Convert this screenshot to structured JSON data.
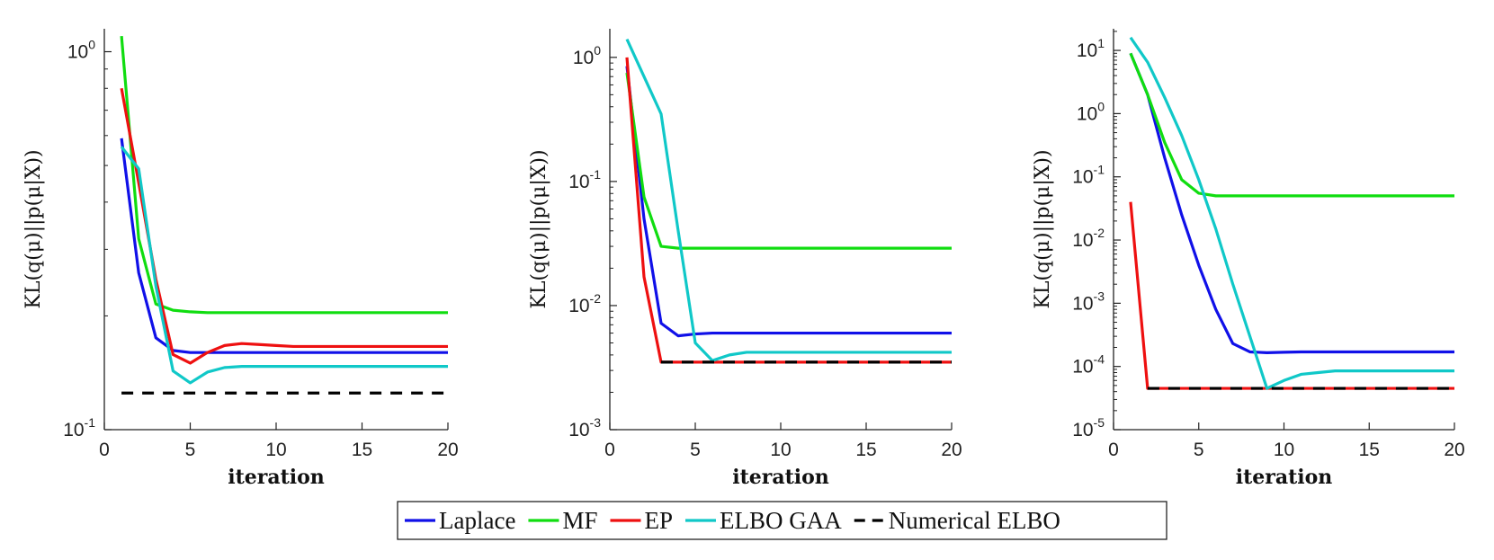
{
  "chart_data": [
    {
      "type": "line",
      "xlabel": "iteration",
      "ylabel": "KL(q(μ)||p(μ|X))",
      "yscale": "log",
      "xlim": [
        0,
        20
      ],
      "ylim": [
        0.1,
        1.15
      ],
      "xticks": [
        0,
        5,
        10,
        15,
        20
      ],
      "yticks": [
        {
          "value": 1,
          "base": "10",
          "exp": "0"
        },
        {
          "value": 0.1,
          "base": "10",
          "exp": "-1"
        }
      ],
      "x": [
        1,
        2,
        3,
        4,
        5,
        6,
        7,
        8,
        9,
        10,
        11,
        12,
        13,
        14,
        15,
        16,
        17,
        18,
        19,
        20
      ],
      "series": [
        {
          "name": "Laplace",
          "color": "#1010e8",
          "values": [
            0.59,
            0.26,
            0.175,
            0.162,
            0.16,
            0.16,
            0.16,
            0.16,
            0.16,
            0.16,
            0.16,
            0.16,
            0.16,
            0.16,
            0.16,
            0.16,
            0.16,
            0.16,
            0.16,
            0.16
          ]
        },
        {
          "name": "MF",
          "color": "#10dd10",
          "values": [
            1.1,
            0.32,
            0.215,
            0.207,
            0.205,
            0.204,
            0.204,
            0.204,
            0.204,
            0.204,
            0.204,
            0.204,
            0.204,
            0.204,
            0.204,
            0.204,
            0.204,
            0.204,
            0.204,
            0.204
          ]
        },
        {
          "name": "EP",
          "color": "#ee1010",
          "values": [
            0.8,
            0.45,
            0.25,
            0.158,
            0.15,
            0.16,
            0.167,
            0.169,
            0.168,
            0.167,
            0.166,
            0.166,
            0.166,
            0.166,
            0.166,
            0.166,
            0.166,
            0.166,
            0.166,
            0.166
          ]
        },
        {
          "name": "ELBO GAA",
          "color": "#10c8c8",
          "values": [
            0.56,
            0.49,
            0.24,
            0.143,
            0.133,
            0.142,
            0.146,
            0.147,
            0.147,
            0.147,
            0.147,
            0.147,
            0.147,
            0.147,
            0.147,
            0.147,
            0.147,
            0.147,
            0.147,
            0.147
          ]
        },
        {
          "name": "Numerical ELBO",
          "color": "#000000",
          "dashed": true,
          "values": [
            0.125,
            0.125,
            0.125,
            0.125,
            0.125,
            0.125,
            0.125,
            0.125,
            0.125,
            0.125,
            0.125,
            0.125,
            0.125,
            0.125,
            0.125,
            0.125,
            0.125,
            0.125,
            0.125,
            0.125
          ]
        }
      ]
    },
    {
      "type": "line",
      "xlabel": "iteration",
      "ylabel": "KL(q(μ)||p(μ|X))",
      "yscale": "log",
      "xlim": [
        0,
        20
      ],
      "ylim": [
        0.001,
        1.7
      ],
      "xticks": [
        0,
        5,
        10,
        15,
        20
      ],
      "yticks": [
        {
          "value": 1,
          "base": "10",
          "exp": "0"
        },
        {
          "value": 0.1,
          "base": "10",
          "exp": "-1"
        },
        {
          "value": 0.01,
          "base": "10",
          "exp": "-2"
        },
        {
          "value": 0.001,
          "base": "10",
          "exp": "-3"
        }
      ],
      "x": [
        1,
        2,
        3,
        4,
        5,
        6,
        7,
        8,
        9,
        10,
        11,
        12,
        13,
        14,
        15,
        16,
        17,
        18,
        19,
        20
      ],
      "series": [
        {
          "name": "Laplace",
          "color": "#1010e8",
          "values": [
            0.85,
            0.05,
            0.0072,
            0.0057,
            0.0059,
            0.006,
            0.006,
            0.006,
            0.006,
            0.006,
            0.006,
            0.006,
            0.006,
            0.006,
            0.006,
            0.006,
            0.006,
            0.006,
            0.006,
            0.006
          ]
        },
        {
          "name": "MF",
          "color": "#10dd10",
          "values": [
            0.75,
            0.075,
            0.03,
            0.029,
            0.029,
            0.029,
            0.029,
            0.029,
            0.029,
            0.029,
            0.029,
            0.029,
            0.029,
            0.029,
            0.029,
            0.029,
            0.029,
            0.029,
            0.029,
            0.029
          ]
        },
        {
          "name": "EP",
          "color": "#ee1010",
          "values": [
            1.0,
            0.017,
            0.0035,
            0.0035,
            0.0035,
            0.0035,
            0.0035,
            0.0035,
            0.0035,
            0.0035,
            0.0035,
            0.0035,
            0.0035,
            0.0035,
            0.0035,
            0.0035,
            0.0035,
            0.0035,
            0.0035,
            0.0035
          ]
        },
        {
          "name": "ELBO GAA",
          "color": "#10c8c8",
          "values": [
            1.4,
            0.7,
            0.35,
            0.04,
            0.005,
            0.0036,
            0.004,
            0.0042,
            0.0042,
            0.0042,
            0.0042,
            0.0042,
            0.0042,
            0.0042,
            0.0042,
            0.0042,
            0.0042,
            0.0042,
            0.0042,
            0.0042
          ]
        },
        {
          "name": "Numerical ELBO",
          "color": "#000000",
          "dashed": true,
          "values": [
            null,
            null,
            0.0035,
            0.0035,
            0.0035,
            0.0035,
            0.0035,
            0.0035,
            0.0035,
            0.0035,
            0.0035,
            0.0035,
            0.0035,
            0.0035,
            0.0035,
            0.0035,
            0.0035,
            0.0035,
            0.0035,
            0.0035
          ]
        }
      ]
    },
    {
      "type": "line",
      "xlabel": "iteration",
      "ylabel": "KL(q(μ)||p(μ|X))",
      "yscale": "log",
      "xlim": [
        0,
        20
      ],
      "ylim": [
        1e-05,
        22
      ],
      "xticks": [
        0,
        5,
        10,
        15,
        20
      ],
      "yticks": [
        {
          "value": 10,
          "base": "10",
          "exp": "1"
        },
        {
          "value": 1,
          "base": "10",
          "exp": "0"
        },
        {
          "value": 0.1,
          "base": "10",
          "exp": "-1"
        },
        {
          "value": 0.01,
          "base": "10",
          "exp": "-2"
        },
        {
          "value": 0.001,
          "base": "10",
          "exp": "-3"
        },
        {
          "value": 0.0001,
          "base": "10",
          "exp": "-4"
        },
        {
          "value": 1e-05,
          "base": "10",
          "exp": "-5"
        }
      ],
      "x": [
        1,
        2,
        3,
        4,
        5,
        6,
        7,
        8,
        9,
        10,
        11,
        12,
        13,
        14,
        15,
        16,
        17,
        18,
        19,
        20
      ],
      "series": [
        {
          "name": "Laplace",
          "color": "#1010e8",
          "values": [
            9,
            2.0,
            0.2,
            0.025,
            0.004,
            0.0008,
            0.00023,
            0.00017,
            0.000165,
            0.000168,
            0.00017,
            0.00017,
            0.00017,
            0.00017,
            0.00017,
            0.00017,
            0.00017,
            0.00017,
            0.00017,
            0.00017
          ]
        },
        {
          "name": "MF",
          "color": "#10dd10",
          "values": [
            9,
            2.0,
            0.35,
            0.09,
            0.055,
            0.05,
            0.05,
            0.05,
            0.05,
            0.05,
            0.05,
            0.05,
            0.05,
            0.05,
            0.05,
            0.05,
            0.05,
            0.05,
            0.05,
            0.05
          ]
        },
        {
          "name": "EP",
          "color": "#ee1010",
          "values": [
            0.04,
            4.5e-05,
            4.5e-05,
            4.5e-05,
            4.5e-05,
            4.5e-05,
            4.5e-05,
            4.5e-05,
            4.5e-05,
            4.5e-05,
            4.5e-05,
            4.5e-05,
            4.5e-05,
            4.5e-05,
            4.5e-05,
            4.5e-05,
            4.5e-05,
            4.5e-05,
            4.5e-05,
            4.5e-05
          ]
        },
        {
          "name": "ELBO GAA",
          "color": "#10c8c8",
          "values": [
            16,
            6.5,
            1.8,
            0.45,
            0.09,
            0.015,
            0.002,
            0.0003,
            4.5e-05,
            6e-05,
            7.5e-05,
            8e-05,
            8.5e-05,
            8.5e-05,
            8.5e-05,
            8.5e-05,
            8.5e-05,
            8.5e-05,
            8.5e-05,
            8.5e-05
          ]
        },
        {
          "name": "Numerical ELBO",
          "color": "#000000",
          "dashed": true,
          "values": [
            null,
            4.5e-05,
            4.5e-05,
            4.5e-05,
            4.5e-05,
            4.5e-05,
            4.5e-05,
            4.5e-05,
            4.5e-05,
            4.5e-05,
            4.5e-05,
            4.5e-05,
            4.5e-05,
            4.5e-05,
            4.5e-05,
            4.5e-05,
            4.5e-05,
            4.5e-05,
            4.5e-05,
            4.5e-05
          ]
        }
      ]
    }
  ],
  "legend": {
    "items": [
      {
        "label": "Laplace",
        "color": "#1010e8",
        "dashed": false
      },
      {
        "label": "MF",
        "color": "#10dd10",
        "dashed": false
      },
      {
        "label": "EP",
        "color": "#ee1010",
        "dashed": false
      },
      {
        "label": "ELBO GAA",
        "color": "#10c8c8",
        "dashed": false
      },
      {
        "label": "Numerical ELBO",
        "color": "#000000",
        "dashed": true
      }
    ]
  }
}
